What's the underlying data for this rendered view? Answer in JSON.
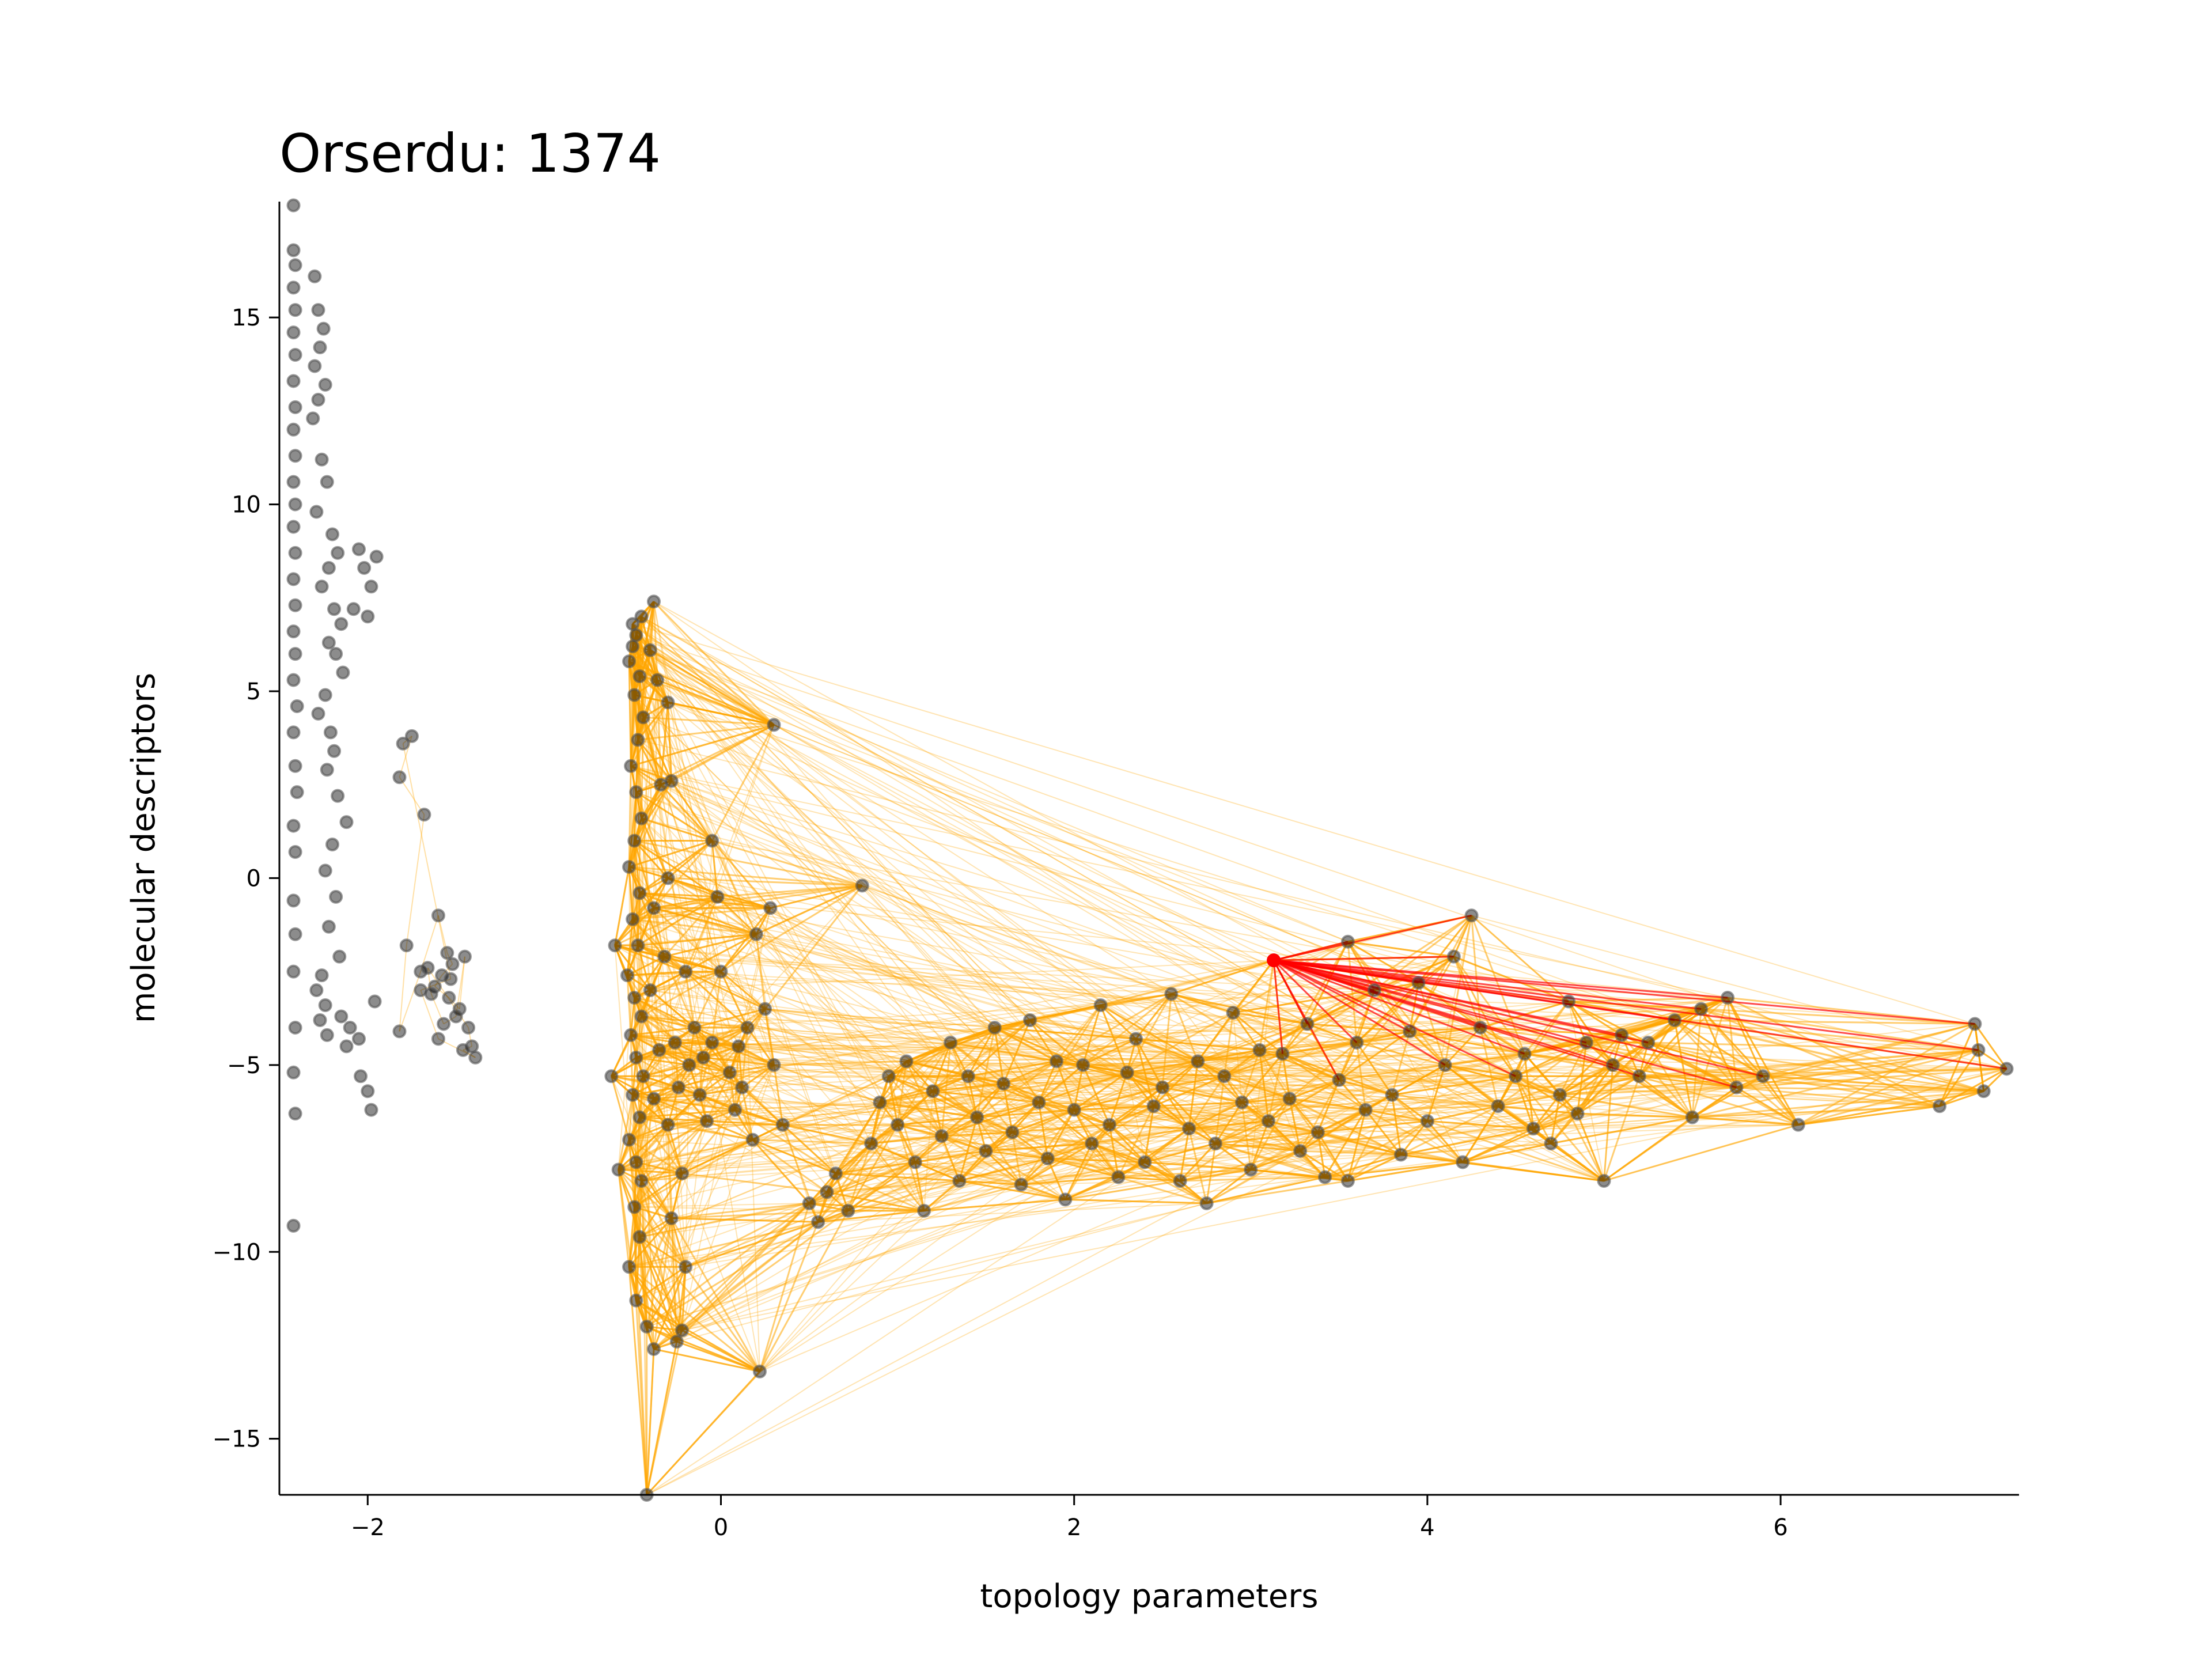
{
  "chart_data": {
    "type": "scatter",
    "title": "Orserdu: 1374",
    "xlabel": "topology parameters",
    "ylabel": "molecular descriptors",
    "xlim": [
      -2.5,
      7.35
    ],
    "ylim": [
      -16.5,
      18.1
    ],
    "xticks": [
      -2,
      0,
      2,
      4,
      6
    ],
    "yticks": [
      -15,
      -10,
      -5,
      0,
      5,
      10,
      15
    ],
    "x_tick_labels": [
      "−2",
      "0",
      "2",
      "4",
      "6"
    ],
    "y_tick_labels": [
      "−15",
      "−10",
      "−5",
      "0",
      "5",
      "10",
      "15"
    ],
    "grid": false,
    "legend": "none",
    "colors": {
      "points": "#000000",
      "edges": "#ffa500",
      "highlight": "#ff0000"
    },
    "highlight_point": [
      3.13,
      -2.2
    ],
    "series": [
      {
        "points": [
          [
            -2.42,
            18.0
          ],
          [
            -2.42,
            16.8
          ],
          [
            -2.41,
            16.4
          ],
          [
            -2.42,
            15.8
          ],
          [
            -2.41,
            15.2
          ],
          [
            -2.42,
            14.6
          ],
          [
            -2.41,
            14.0
          ],
          [
            -2.42,
            13.3
          ],
          [
            -2.41,
            12.6
          ],
          [
            -2.42,
            12.0
          ],
          [
            -2.41,
            11.3
          ],
          [
            -2.42,
            10.6
          ],
          [
            -2.41,
            10.0
          ],
          [
            -2.42,
            9.4
          ],
          [
            -2.41,
            8.7
          ],
          [
            -2.42,
            8.0
          ],
          [
            -2.41,
            7.3
          ],
          [
            -2.42,
            6.6
          ],
          [
            -2.41,
            6.0
          ],
          [
            -2.42,
            5.3
          ],
          [
            -2.4,
            4.6
          ],
          [
            -2.42,
            3.9
          ],
          [
            -2.41,
            3.0
          ],
          [
            -2.4,
            2.3
          ],
          [
            -2.42,
            1.4
          ],
          [
            -2.41,
            0.7
          ],
          [
            -2.42,
            -0.6
          ],
          [
            -2.41,
            -1.5
          ],
          [
            -2.42,
            -2.5
          ],
          [
            -2.41,
            -4.0
          ],
          [
            -2.42,
            -5.2
          ],
          [
            -2.41,
            -6.3
          ],
          [
            -2.42,
            -9.3
          ],
          [
            -2.3,
            16.1
          ],
          [
            -2.28,
            15.2
          ],
          [
            -2.25,
            14.7
          ],
          [
            -2.27,
            14.2
          ],
          [
            -2.3,
            13.7
          ],
          [
            -2.24,
            13.2
          ],
          [
            -2.28,
            12.8
          ],
          [
            -2.31,
            12.3
          ],
          [
            -2.26,
            11.2
          ],
          [
            -2.23,
            10.6
          ],
          [
            -2.29,
            9.8
          ],
          [
            -2.2,
            9.2
          ],
          [
            -2.17,
            8.7
          ],
          [
            -2.22,
            8.3
          ],
          [
            -2.26,
            7.8
          ],
          [
            -2.19,
            7.2
          ],
          [
            -2.15,
            6.8
          ],
          [
            -2.22,
            6.3
          ],
          [
            -2.18,
            6.0
          ],
          [
            -2.14,
            5.5
          ],
          [
            -2.24,
            4.9
          ],
          [
            -2.28,
            4.4
          ],
          [
            -2.21,
            3.9
          ],
          [
            -2.19,
            3.4
          ],
          [
            -2.23,
            2.9
          ],
          [
            -2.17,
            2.2
          ],
          [
            -2.12,
            1.5
          ],
          [
            -2.2,
            0.9
          ],
          [
            -2.24,
            0.2
          ],
          [
            -2.18,
            -0.5
          ],
          [
            -2.22,
            -1.3
          ],
          [
            -2.16,
            -2.1
          ],
          [
            -2.26,
            -2.6
          ],
          [
            -2.29,
            -3.0
          ],
          [
            -2.24,
            -3.4
          ],
          [
            -2.27,
            -3.8
          ],
          [
            -2.23,
            -4.2
          ],
          [
            -2.05,
            8.8
          ],
          [
            -2.02,
            8.3
          ],
          [
            -1.98,
            7.8
          ],
          [
            -2.08,
            7.2
          ],
          [
            -2.0,
            7.0
          ],
          [
            -1.95,
            8.6
          ],
          [
            -2.1,
            -4.0
          ],
          [
            -2.05,
            -4.3
          ],
          [
            -2.12,
            -4.5
          ],
          [
            -2.0,
            -5.7
          ],
          [
            -1.98,
            -6.2
          ],
          [
            -2.04,
            -5.3
          ],
          [
            -1.96,
            -3.3
          ],
          [
            -2.15,
            -3.7
          ],
          [
            -1.8,
            3.6
          ],
          [
            -1.75,
            3.8
          ],
          [
            -1.82,
            2.7
          ],
          [
            -1.68,
            1.7
          ],
          [
            -1.78,
            -1.8
          ],
          [
            -1.82,
            -4.1
          ],
          [
            -1.7,
            -2.5
          ],
          [
            -1.6,
            -1.0
          ],
          [
            -1.55,
            -2.0
          ],
          [
            -1.52,
            -2.3
          ],
          [
            -1.58,
            -2.6
          ],
          [
            -1.62,
            -2.9
          ],
          [
            -1.54,
            -3.2
          ],
          [
            -1.48,
            -3.5
          ],
          [
            -1.45,
            -2.1
          ],
          [
            -1.5,
            -3.7
          ],
          [
            -1.57,
            -3.9
          ],
          [
            -1.64,
            -3.1
          ],
          [
            -1.66,
            -2.4
          ],
          [
            -1.43,
            -4.0
          ],
          [
            -1.41,
            -4.5
          ],
          [
            -1.46,
            -4.6
          ],
          [
            -1.39,
            -4.8
          ],
          [
            -1.6,
            -4.3
          ],
          [
            -1.7,
            -3.0
          ],
          [
            -1.53,
            -2.7
          ],
          [
            -0.5,
            6.8
          ],
          [
            -0.48,
            6.5
          ],
          [
            -0.45,
            7.0
          ],
          [
            -0.5,
            6.2
          ],
          [
            -0.52,
            5.8
          ],
          [
            -0.46,
            5.4
          ],
          [
            -0.49,
            4.9
          ],
          [
            -0.44,
            4.3
          ],
          [
            -0.47,
            3.7
          ],
          [
            -0.51,
            3.0
          ],
          [
            -0.48,
            2.3
          ],
          [
            -0.45,
            1.6
          ],
          [
            -0.49,
            1.0
          ],
          [
            -0.52,
            0.3
          ],
          [
            -0.46,
            -0.4
          ],
          [
            -0.5,
            -1.1
          ],
          [
            -0.47,
            -1.8
          ],
          [
            -0.53,
            -2.6
          ],
          [
            -0.49,
            -3.2
          ],
          [
            -0.45,
            -3.7
          ],
          [
            -0.51,
            -4.2
          ],
          [
            -0.48,
            -4.8
          ],
          [
            -0.44,
            -5.3
          ],
          [
            -0.5,
            -5.8
          ],
          [
            -0.46,
            -6.4
          ],
          [
            -0.52,
            -7.0
          ],
          [
            -0.48,
            -7.6
          ],
          [
            -0.45,
            -8.1
          ],
          [
            -0.49,
            -8.8
          ],
          [
            -0.46,
            -9.6
          ],
          [
            -0.52,
            -10.4
          ],
          [
            -0.48,
            -11.3
          ],
          [
            -0.38,
            7.4
          ],
          [
            -0.4,
            6.1
          ],
          [
            -0.36,
            5.3
          ],
          [
            -0.34,
            2.5
          ],
          [
            -0.38,
            -0.8
          ],
          [
            -0.4,
            -3.0
          ],
          [
            -0.35,
            -4.6
          ],
          [
            -0.38,
            -5.9
          ],
          [
            -0.42,
            -12.0
          ],
          [
            -0.38,
            -12.6
          ],
          [
            -0.42,
            -16.5
          ],
          [
            -0.6,
            -1.8
          ],
          [
            -0.62,
            -5.3
          ],
          [
            -0.58,
            -7.8
          ],
          [
            -0.3,
            4.7
          ],
          [
            -0.28,
            2.6
          ],
          [
            -0.3,
            0.0
          ],
          [
            -0.32,
            -2.1
          ],
          [
            -0.26,
            -4.4
          ],
          [
            -0.24,
            -5.6
          ],
          [
            -0.3,
            -6.6
          ],
          [
            -0.22,
            -7.9
          ],
          [
            -0.28,
            -9.1
          ],
          [
            -0.2,
            -10.4
          ],
          [
            -0.25,
            -12.4
          ],
          [
            -0.22,
            -12.1
          ],
          [
            -0.15,
            -4.0
          ],
          [
            -0.18,
            -5.0
          ],
          [
            -0.1,
            -4.8
          ],
          [
            -0.12,
            -5.8
          ],
          [
            -0.05,
            -4.4
          ],
          [
            0.0,
            -2.5
          ],
          [
            -0.08,
            -6.5
          ],
          [
            0.05,
            -5.2
          ],
          [
            -0.2,
            -2.5
          ],
          [
            -0.05,
            1.0
          ],
          [
            -0.02,
            -0.5
          ],
          [
            0.1,
            -4.5
          ],
          [
            0.12,
            -5.6
          ],
          [
            0.08,
            -6.2
          ],
          [
            0.15,
            -4.0
          ],
          [
            0.18,
            -7.0
          ],
          [
            0.22,
            -13.2
          ],
          [
            0.3,
            4.1
          ],
          [
            0.28,
            -0.8
          ],
          [
            0.2,
            -1.5
          ],
          [
            0.25,
            -3.5
          ],
          [
            0.3,
            -5.0
          ],
          [
            0.35,
            -6.6
          ],
          [
            0.5,
            -8.7
          ],
          [
            0.55,
            -9.2
          ],
          [
            0.6,
            -8.4
          ],
          [
            0.65,
            -7.9
          ],
          [
            0.72,
            -8.9
          ],
          [
            0.8,
            -0.2
          ],
          [
            0.85,
            -7.1
          ],
          [
            0.9,
            -6.0
          ],
          [
            0.95,
            -5.3
          ],
          [
            1.0,
            -6.6
          ],
          [
            1.05,
            -4.9
          ],
          [
            1.1,
            -7.6
          ],
          [
            1.15,
            -8.9
          ],
          [
            1.2,
            -5.7
          ],
          [
            1.25,
            -6.9
          ],
          [
            1.3,
            -4.4
          ],
          [
            1.35,
            -8.1
          ],
          [
            1.4,
            -5.3
          ],
          [
            1.45,
            -6.4
          ],
          [
            1.5,
            -7.3
          ],
          [
            1.55,
            -4.0
          ],
          [
            1.6,
            -5.5
          ],
          [
            1.65,
            -6.8
          ],
          [
            1.7,
            -8.2
          ],
          [
            1.75,
            -3.8
          ],
          [
            1.8,
            -6.0
          ],
          [
            1.85,
            -7.5
          ],
          [
            1.9,
            -4.9
          ],
          [
            1.95,
            -8.6
          ],
          [
            2.0,
            -6.2
          ],
          [
            2.05,
            -5.0
          ],
          [
            2.1,
            -7.1
          ],
          [
            2.15,
            -3.4
          ],
          [
            2.2,
            -6.6
          ],
          [
            2.25,
            -8.0
          ],
          [
            2.3,
            -5.2
          ],
          [
            2.35,
            -4.3
          ],
          [
            2.4,
            -7.6
          ],
          [
            2.45,
            -6.1
          ],
          [
            2.5,
            -5.6
          ],
          [
            2.55,
            -3.1
          ],
          [
            2.6,
            -8.1
          ],
          [
            2.65,
            -6.7
          ],
          [
            2.7,
            -4.9
          ],
          [
            2.75,
            -8.7
          ],
          [
            2.8,
            -7.1
          ],
          [
            2.85,
            -5.3
          ],
          [
            2.9,
            -3.6
          ],
          [
            2.95,
            -6.0
          ],
          [
            3.0,
            -7.8
          ],
          [
            3.05,
            -4.6
          ],
          [
            3.1,
            -6.5
          ],
          [
            3.13,
            -2.2
          ],
          [
            3.18,
            -4.7
          ],
          [
            3.22,
            -5.9
          ],
          [
            3.28,
            -7.3
          ],
          [
            3.32,
            -3.9
          ],
          [
            3.38,
            -6.8
          ],
          [
            3.42,
            -8.0
          ],
          [
            3.5,
            -5.4
          ],
          [
            3.55,
            -1.7
          ],
          [
            3.55,
            -8.1
          ],
          [
            3.6,
            -4.4
          ],
          [
            3.65,
            -6.2
          ],
          [
            3.7,
            -3.0
          ],
          [
            3.8,
            -5.8
          ],
          [
            3.85,
            -7.4
          ],
          [
            3.9,
            -4.1
          ],
          [
            3.95,
            -2.8
          ],
          [
            4.0,
            -6.5
          ],
          [
            4.1,
            -5.0
          ],
          [
            4.15,
            -2.1
          ],
          [
            4.2,
            -7.6
          ],
          [
            4.25,
            -1.0
          ],
          [
            4.3,
            -4.0
          ],
          [
            4.4,
            -6.1
          ],
          [
            4.5,
            -5.3
          ],
          [
            4.55,
            -4.7
          ],
          [
            4.6,
            -6.7
          ],
          [
            4.7,
            -7.1
          ],
          [
            4.75,
            -5.8
          ],
          [
            4.8,
            -3.3
          ],
          [
            4.85,
            -6.3
          ],
          [
            4.9,
            -4.4
          ],
          [
            5.0,
            -8.1
          ],
          [
            5.05,
            -5.0
          ],
          [
            5.1,
            -4.2
          ],
          [
            5.2,
            -5.3
          ],
          [
            5.25,
            -4.4
          ],
          [
            5.4,
            -3.8
          ],
          [
            5.5,
            -6.4
          ],
          [
            5.55,
            -3.5
          ],
          [
            5.7,
            -3.2
          ],
          [
            5.75,
            -5.6
          ],
          [
            5.9,
            -5.3
          ],
          [
            6.1,
            -6.6
          ],
          [
            6.9,
            -6.1
          ],
          [
            7.1,
            -3.9
          ],
          [
            7.12,
            -4.6
          ],
          [
            7.15,
            -5.7
          ],
          [
            7.28,
            -5.1
          ]
        ]
      }
    ]
  }
}
